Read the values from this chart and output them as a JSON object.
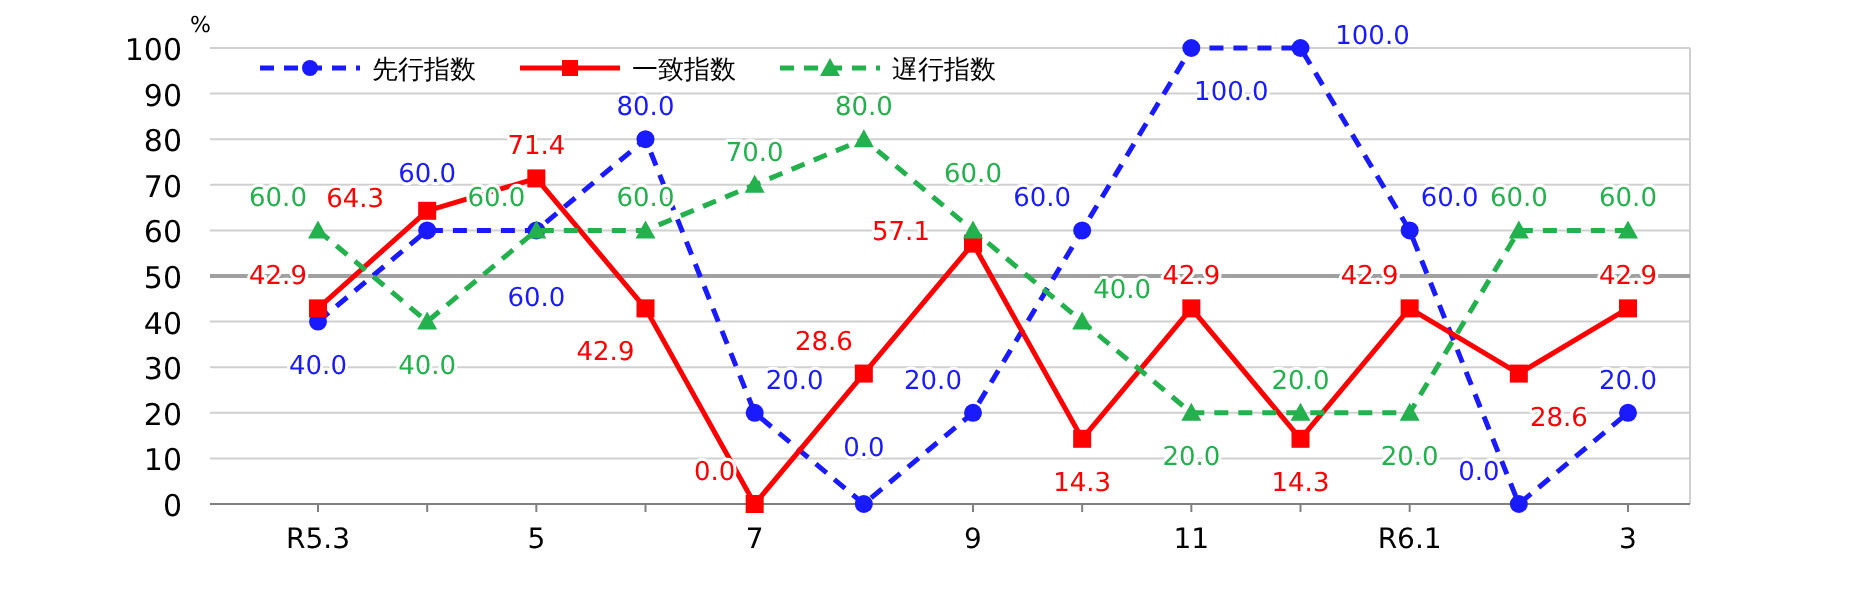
{
  "chart_data": {
    "type": "line",
    "ylabel": "%",
    "categories": [
      "R5.3",
      null,
      "5",
      null,
      "7",
      null,
      "9",
      null,
      "11",
      null,
      "R6.1",
      null,
      "3"
    ],
    "series": [
      {
        "name": "先行指数",
        "color": "#1a1aff",
        "marker": "circle",
        "line_style": "dashed",
        "values": [
          40.0,
          60.0,
          60.0,
          80.0,
          20.0,
          0.0,
          20.0,
          60.0,
          100.0,
          100.0,
          60.0,
          0.0,
          20.0
        ],
        "value_labels": [
          "40.0",
          "60.0",
          "60.0",
          "80.0",
          "20.0",
          "0.0",
          "20.0",
          "60.0",
          "100.0",
          "100.0",
          "60.0",
          "0.0",
          "20.0"
        ]
      },
      {
        "name": "一致指数",
        "color": "#ff0000",
        "marker": "square",
        "line_style": "solid",
        "values": [
          42.9,
          64.3,
          71.4,
          42.9,
          0.0,
          28.6,
          57.1,
          14.3,
          42.9,
          14.3,
          42.9,
          28.6,
          42.9
        ],
        "value_labels": [
          "42.9",
          "64.3",
          "71.4",
          "42.9",
          "0.0",
          "28.6",
          "57.1",
          "14.3",
          "42.9",
          "14.3",
          "42.9",
          "28.6",
          "42.9"
        ]
      },
      {
        "name": "遅行指数",
        "color": "#22b14c",
        "marker": "triangle",
        "line_style": "dashed",
        "values": [
          60.0,
          40.0,
          60.0,
          60.0,
          70.0,
          80.0,
          60.0,
          40.0,
          20.0,
          20.0,
          20.0,
          60.0,
          60.0
        ],
        "value_labels": [
          "60.0",
          "40.0",
          "60.0",
          "60.0",
          "70.0",
          "80.0",
          "60.0",
          "40.0",
          "20.0",
          "20.0",
          "20.0",
          "60.0",
          "60.0"
        ]
      }
    ],
    "ylim": [
      0,
      100
    ],
    "yticks": [
      0,
      10,
      20,
      30,
      40,
      50,
      60,
      70,
      80,
      90,
      100
    ],
    "grid": "y",
    "legend": "top left",
    "ref_lines": [
      {
        "axis": "y",
        "value": 50,
        "color": "#a0a0a0"
      }
    ]
  }
}
